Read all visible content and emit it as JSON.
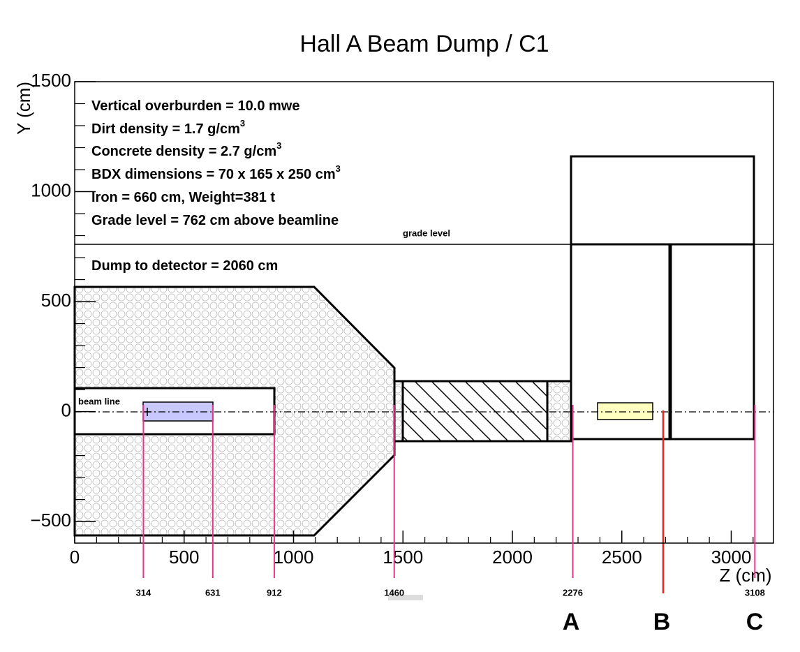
{
  "title": "Hall A Beam Dump / C1",
  "x_label": "Z (cm)",
  "y_label": "Y (cm)",
  "xlim": [
    0,
    3193
  ],
  "ylim": [
    -598,
    1500
  ],
  "xticks": [
    0,
    500,
    1000,
    1500,
    2000,
    2500,
    3000
  ],
  "yticks": [
    {
      "value": -500,
      "label": "−500"
    },
    0,
    500,
    1000,
    1500
  ],
  "info_lines": [
    {
      "text": "Vertical overburden = 10.0 mwe"
    },
    {
      "text": "Dirt density = 1.7 g/cm",
      "sup": "3"
    },
    {
      "text": "Concrete density = 2.7 g/cm",
      "sup": "3"
    },
    {
      "text": "BDX dimensions = 70 x 165 x 250 cm",
      "sup": "3"
    },
    {
      "text": "Iron = 660 cm, Weight=381 t"
    },
    {
      "text": "Grade level = 762 cm above beamline"
    },
    {
      "text": "Dump to detector = 2060 cm"
    }
  ],
  "grade_label": "grade  level",
  "beam_label": "beam line",
  "positions": [
    314,
    631,
    912,
    1460,
    2276,
    3108
  ],
  "points": [
    "A",
    "B",
    "C"
  ]
}
